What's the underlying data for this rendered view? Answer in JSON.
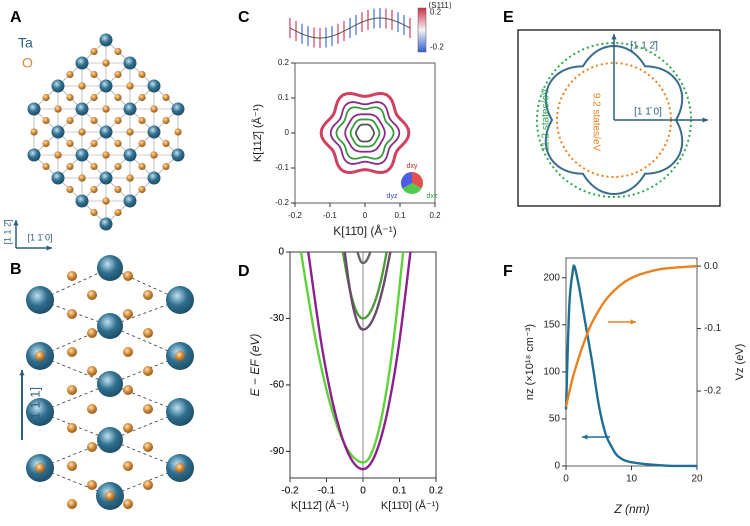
{
  "panel_labels": [
    "A",
    "B",
    "C",
    "D",
    "E",
    "F"
  ],
  "panel_a": {
    "atom_labels": [
      "Ta",
      "O"
    ],
    "directions": [
      "[1 1 2̄]",
      "[1 1̄ 0]"
    ]
  },
  "panel_b": {
    "direction": "[1 1 1]"
  },
  "panel_e": {
    "directions": [
      "[1 1 2̄]",
      "[1 1̄ 0]"
    ],
    "dos_labels": [
      "11.2 states/eV",
      "9.2 states/eV"
    ]
  },
  "chart_data": [
    {
      "type": "rings",
      "colorbar_label": "⟨S111⟩",
      "colorbar_lim": [
        -0.25,
        0.25
      ],
      "colorbar_ticks": [
        -0.2,
        0.2
      ],
      "orbital_labels": [
        "dxy",
        "dxz",
        "dyz"
      ],
      "xlabel": "K[11̄0] (Å⁻¹)",
      "ylabel": "K[112̄] (Å⁻¹)",
      "xlim": [
        -0.2,
        0.2
      ],
      "ylim": [
        -0.2,
        0.2
      ],
      "xticks": [
        -0.2,
        -0.1,
        0,
        0.1,
        0.2
      ],
      "yticks": [
        -0.2,
        -0.1,
        0,
        0.1,
        0.2
      ],
      "radii": [
        0.025,
        0.04,
        0.055,
        0.075,
        0.09,
        0.115
      ],
      "colors": [
        "#555555",
        "#3a9a3a",
        "#8a2a8a",
        "#3a9a3a",
        "#8a2a8a",
        "#d04060"
      ]
    },
    {
      "type": "line",
      "xlabels": [
        "K[112̄] (Å⁻¹)",
        "K[11̄0] (Å⁻¹)"
      ],
      "ylabel": "E − EF (eV)",
      "xlim": [
        -0.2,
        0.2
      ],
      "ylim": [
        -102,
        0
      ],
      "xticks": [
        -0.2,
        -0.1,
        0,
        0.1,
        0.2
      ],
      "yticks": [
        -90,
        -60,
        -30,
        0
      ],
      "series": [
        {
          "color": "#5fd13a",
          "x": [
            -0.17,
            -0.1275,
            -0.085,
            -0.0425,
            0,
            0.0275,
            0.055,
            0.0825,
            0.11
          ],
          "values": [
            0,
            -41.6,
            -71.3,
            -89.1,
            -95,
            -89.1,
            -71.3,
            -41.6,
            0
          ]
        },
        {
          "color": "#8e1f8e",
          "x": [
            -0.15,
            -0.1125,
            -0.075,
            -0.0375,
            0,
            0.0325,
            0.065,
            0.0975,
            0.13
          ],
          "values": [
            0,
            -42.9,
            -73.5,
            -91.9,
            -98,
            -91.9,
            -73.5,
            -42.9,
            0
          ]
        },
        {
          "color": "#4f9a3a",
          "x": [
            -0.055,
            -0.041,
            -0.0275,
            -0.014,
            0,
            0.016,
            0.0325,
            0.049,
            0.065
          ],
          "values": [
            0,
            -13.1,
            -22.5,
            -28.1,
            -30,
            -28.1,
            -22.5,
            -13.1,
            0
          ]
        },
        {
          "color": "#6a4a6a",
          "x": [
            -0.05,
            -0.0375,
            -0.025,
            -0.0125,
            0,
            0.019,
            0.0375,
            0.056,
            0.075
          ],
          "values": [
            0,
            -15.3,
            -26.3,
            -32.8,
            -35,
            -32.8,
            -26.3,
            -15.3,
            0
          ]
        },
        {
          "color": "#666666",
          "x": [
            -0.015,
            -0.011,
            -0.0075,
            -0.004,
            0,
            0.005,
            0.01,
            0.015,
            0.02
          ],
          "values": [
            0,
            -2.2,
            -3.8,
            -4.7,
            -5,
            -4.7,
            -3.8,
            -2.2,
            0
          ]
        }
      ]
    },
    {
      "type": "line",
      "xlabel": "Z (nm)",
      "ylabel": "nz (×10¹⁸ cm⁻³)",
      "y2label": "Vz (eV)",
      "xlim": [
        0,
        20
      ],
      "ylim": [
        0,
        221
      ],
      "y2lim": [
        -0.32,
        0.013
      ],
      "xticks": [
        0,
        10,
        20
      ],
      "yticks": [
        0,
        50,
        100,
        150,
        200
      ],
      "y2ticks": [
        -0.2,
        -0.1,
        {
          "value": 0,
          "label": "0.0"
        }
      ],
      "series": [
        {
          "color": "#1f6e94",
          "x": [
            0,
            0.5,
            1,
            1.3,
            2,
            3,
            4,
            5,
            6,
            7,
            8,
            10,
            15,
            20
          ],
          "values": [
            60,
            170,
            205,
            212,
            190,
            150,
            110,
            65,
            35,
            20,
            10,
            4,
            0.5,
            0
          ]
        },
        {
          "color": "#e8821e",
          "axis": "y2",
          "x": [
            0,
            1,
            2,
            3,
            4,
            6,
            8,
            10,
            12,
            15,
            20
          ],
          "values": [
            -0.225,
            -0.18,
            -0.145,
            -0.115,
            -0.09,
            -0.055,
            -0.033,
            -0.019,
            -0.011,
            -0.004,
            0
          ]
        }
      ]
    }
  ]
}
